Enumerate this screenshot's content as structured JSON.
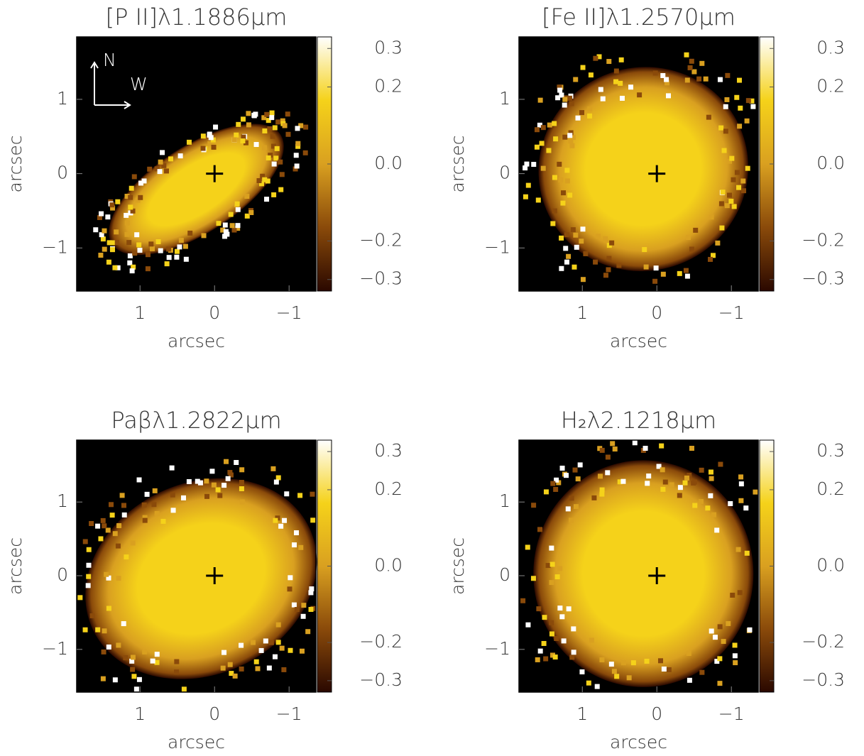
{
  "chart_data": [
    {
      "type": "heatmap",
      "title": "[P II]λ1.1886μm",
      "xlabel": "arcsec",
      "ylabel": "arcsec",
      "xlim": [
        1.85,
        -1.36
      ],
      "ylim": [
        -1.58,
        1.84
      ],
      "xticks": [
        1,
        0,
        {
          "value": -1,
          "label": "−1"
        }
      ],
      "yticks": [
        {
          "value": -1,
          "label": "−1"
        },
        0,
        1
      ],
      "clim": [
        -0.33,
        0.33
      ],
      "cticks": [
        {
          "value": -0.3,
          "label": "−0.3"
        },
        {
          "value": -0.2,
          "label": "−0.2"
        },
        {
          "value": 0,
          "label": "0.0"
        },
        0.2,
        0.3
      ],
      "colormap": [
        "#2a0800",
        "#8a4a0a",
        "#d9a020",
        "#f5d21a",
        "#ffffff"
      ],
      "annotations": [
        "N",
        "W"
      ]
    },
    {
      "type": "heatmap",
      "title": "[Fe II]λ1.2570μm",
      "xlabel": "arcsec",
      "ylabel": "arcsec",
      "xlim": [
        1.85,
        -1.36
      ],
      "ylim": [
        -1.58,
        1.84
      ],
      "xticks": [
        1,
        0,
        {
          "value": -1,
          "label": "−1"
        }
      ],
      "yticks": [
        {
          "value": -1,
          "label": "−1"
        },
        0,
        1
      ],
      "clim": [
        -0.33,
        0.33
      ],
      "cticks": [
        {
          "value": -0.3,
          "label": "−0.3"
        },
        {
          "value": -0.2,
          "label": "−0.2"
        },
        {
          "value": 0,
          "label": "0.0"
        },
        0.2,
        0.3
      ],
      "colormap": [
        "#2a0800",
        "#8a4a0a",
        "#d9a020",
        "#f5d21a",
        "#ffffff"
      ]
    },
    {
      "type": "heatmap",
      "title": "Paβλ1.2822μm",
      "xlabel": "arcsec",
      "ylabel": "arcsec",
      "xlim": [
        1.85,
        -1.36
      ],
      "ylim": [
        -1.58,
        1.84
      ],
      "xticks": [
        1,
        0,
        {
          "value": -1,
          "label": "−1"
        }
      ],
      "yticks": [
        {
          "value": -1,
          "label": "−1"
        },
        0,
        1
      ],
      "clim": [
        -0.33,
        0.33
      ],
      "cticks": [
        {
          "value": -0.3,
          "label": "−0.3"
        },
        {
          "value": -0.2,
          "label": "−0.2"
        },
        {
          "value": 0,
          "label": "0.0"
        },
        0.2,
        0.3
      ],
      "colormap": [
        "#2a0800",
        "#8a4a0a",
        "#d9a020",
        "#f5d21a",
        "#ffffff"
      ]
    },
    {
      "type": "heatmap",
      "title": "H₂λ2.1218μm",
      "xlabel": "arcsec",
      "ylabel": "arcsec",
      "xlim": [
        1.85,
        -1.36
      ],
      "ylim": [
        -1.58,
        1.84
      ],
      "xticks": [
        1,
        0,
        {
          "value": -1,
          "label": "−1"
        }
      ],
      "yticks": [
        {
          "value": -1,
          "label": "−1"
        },
        0,
        1
      ],
      "clim": [
        -0.33,
        0.33
      ],
      "cticks": [
        {
          "value": -0.3,
          "label": "−0.3"
        },
        {
          "value": -0.2,
          "label": "−0.2"
        },
        {
          "value": 0,
          "label": "0.0"
        },
        0.2,
        0.3
      ],
      "colormap": [
        "#2a0800",
        "#8a4a0a",
        "#d9a020",
        "#f5d21a",
        "#ffffff"
      ]
    }
  ]
}
